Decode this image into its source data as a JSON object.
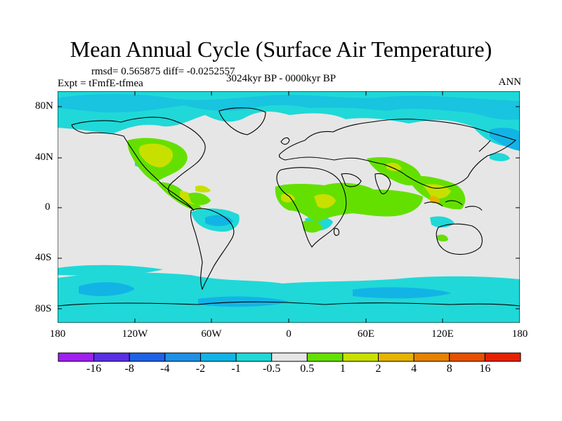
{
  "title": "Mean Annual Cycle (Surface Air Temperature)",
  "stats": "rmsd= 0.565875 diff= -0.0252557",
  "experiment": "Expt = tFmfE-tfmea",
  "period": "3024kyr BP - 0000kyr BP",
  "season": "ANN",
  "lat_labels": [
    "80N",
    "40N",
    "0",
    "40S",
    "80S"
  ],
  "lon_labels": [
    "180",
    "120W",
    "60W",
    "0",
    "60E",
    "120E",
    "180"
  ],
  "colorbar": {
    "labels": [
      "-16",
      "-8",
      "-4",
      "-2",
      "-1",
      "-0.5",
      "0.5",
      "1",
      "2",
      "4",
      "8",
      "16"
    ],
    "colors": [
      "#a020f0",
      "#5a2fe6",
      "#1e62e6",
      "#1e90e6",
      "#12b4e6",
      "#20d8d8",
      "#e6e6e6",
      "#64e000",
      "#c8e000",
      "#e6b400",
      "#e68200",
      "#e65000",
      "#e62000"
    ]
  },
  "map_colors": {
    "background": "#e6e6e6",
    "cool1": "#20d8d8",
    "cool2": "#12b4e6",
    "warm1": "#64e000",
    "warm2": "#c8e000",
    "warm3": "#e6b400"
  }
}
